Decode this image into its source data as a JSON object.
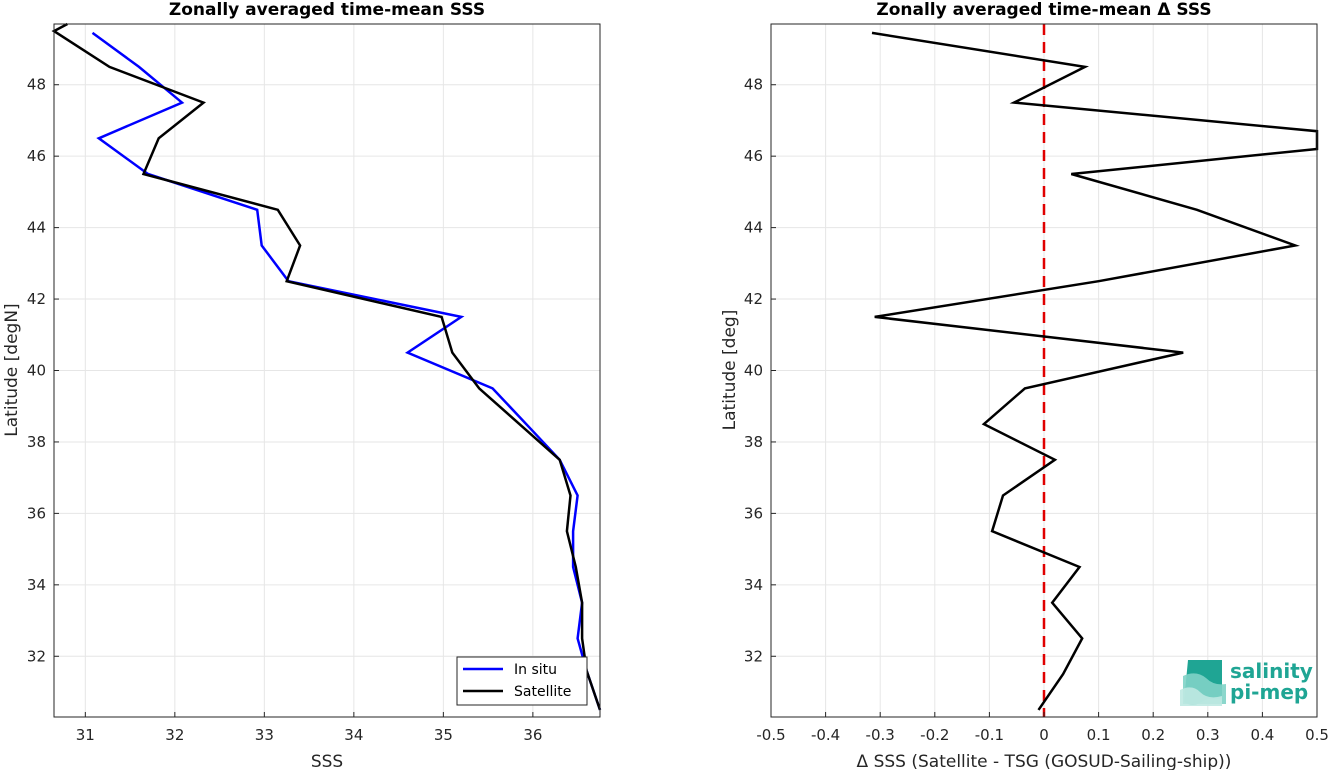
{
  "chart_data": [
    {
      "type": "line",
      "title": "Zonally averaged time-mean SSS",
      "xlabel": "SSS",
      "ylabel": "Latitude [degN]",
      "xlim": [
        30.65,
        36.75
      ],
      "ylim": [
        30.3,
        49.7
      ],
      "xticks": [
        "31",
        "32",
        "33",
        "34",
        "35",
        "36"
      ],
      "yticks": [
        "32",
        "34",
        "36",
        "38",
        "40",
        "42",
        "44",
        "46",
        "48"
      ],
      "grid": true,
      "legend_position": "bottom-right",
      "series": [
        {
          "name": "In situ",
          "color": "#0000ff",
          "points": [
            [
              31.08,
              49.45
            ],
            [
              31.6,
              48.5
            ],
            [
              32.08,
              47.5
            ],
            [
              31.15,
              46.5
            ],
            [
              31.7,
              45.5
            ],
            [
              32.92,
              44.5
            ],
            [
              32.97,
              43.5
            ],
            [
              33.27,
              42.5
            ],
            [
              35.2,
              41.5
            ],
            [
              34.6,
              40.5
            ],
            [
              35.55,
              39.5
            ],
            [
              36.0,
              38.3
            ],
            [
              36.3,
              37.5
            ],
            [
              36.5,
              36.5
            ],
            [
              36.45,
              35.5
            ],
            [
              36.45,
              34.5
            ],
            [
              36.55,
              33.5
            ],
            [
              36.5,
              32.5
            ],
            [
              36.6,
              31.6
            ],
            [
              36.75,
              30.5
            ]
          ]
        },
        {
          "name": "Satellite",
          "color": "#000000",
          "points": [
            [
              30.8,
              49.8
            ],
            [
              30.65,
              49.5
            ],
            [
              31.27,
              48.5
            ],
            [
              32.32,
              47.5
            ],
            [
              31.82,
              46.5
            ],
            [
              31.65,
              45.5
            ],
            [
              33.15,
              44.5
            ],
            [
              33.4,
              43.5
            ],
            [
              33.25,
              42.5
            ],
            [
              34.98,
              41.5
            ],
            [
              35.1,
              40.5
            ],
            [
              35.4,
              39.5
            ],
            [
              36.3,
              37.5
            ],
            [
              36.42,
              36.5
            ],
            [
              36.38,
              35.5
            ],
            [
              36.48,
              34.5
            ],
            [
              36.55,
              33.5
            ],
            [
              36.55,
              32.5
            ],
            [
              36.6,
              31.6
            ],
            [
              36.75,
              30.5
            ]
          ]
        }
      ]
    },
    {
      "type": "line",
      "title": "Zonally averaged time-mean Δ SSS",
      "xlabel": "Δ SSS (Satellite - TSG (GOSUD-Sailing-ship))",
      "ylabel": "Latitude [deg]",
      "xlim": [
        -0.5,
        0.5
      ],
      "ylim": [
        30.3,
        49.7
      ],
      "xticks": [
        "-0.5",
        "-0.4",
        "-0.3",
        "-0.2",
        "-0.1",
        "0",
        "0.1",
        "0.2",
        "0.3",
        "0.4",
        "0.5"
      ],
      "yticks": [
        "32",
        "34",
        "36",
        "38",
        "40",
        "42",
        "44",
        "46",
        "48"
      ],
      "grid": true,
      "zero_line_color": "#e00000",
      "series": [
        {
          "color": "#000000",
          "points": [
            [
              -0.315,
              49.45
            ],
            [
              0.075,
              48.5
            ],
            [
              -0.055,
              47.5
            ],
            [
              0.5,
              46.7
            ],
            [
              0.5,
              46.2
            ],
            [
              0.05,
              45.5
            ],
            [
              0.28,
              44.5
            ],
            [
              0.46,
              43.5
            ],
            [
              0.1,
              42.5
            ],
            [
              -0.31,
              41.5
            ],
            [
              0.255,
              40.5
            ],
            [
              -0.035,
              39.5
            ],
            [
              -0.11,
              38.5
            ],
            [
              0.02,
              37.5
            ],
            [
              -0.075,
              36.5
            ],
            [
              -0.095,
              35.5
            ],
            [
              0.065,
              34.5
            ],
            [
              0.015,
              33.5
            ],
            [
              0.07,
              32.5
            ],
            [
              0.035,
              31.5
            ],
            [
              -0.01,
              30.5
            ]
          ]
        }
      ]
    }
  ],
  "logo": {
    "line1": "salinity",
    "line2": "pi-mep",
    "color": "#1fa594"
  }
}
